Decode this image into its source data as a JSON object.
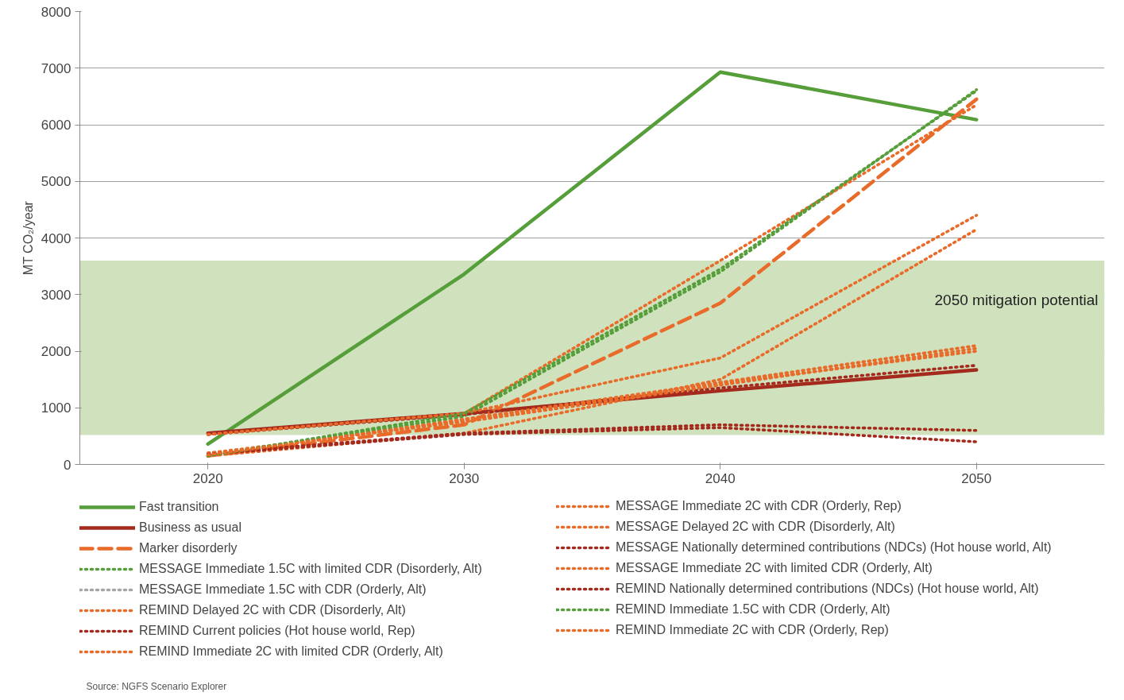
{
  "chart_data": {
    "type": "line",
    "ylabel": "MT CO₂/year",
    "x": [
      2020,
      2030,
      2040,
      2050
    ],
    "xlim": [
      2015,
      2055
    ],
    "xticks": [
      2020,
      2030,
      2040,
      2050
    ],
    "ylim": [
      0,
      8000
    ],
    "yticks": [
      0,
      1000,
      2000,
      3000,
      4000,
      5000,
      6000,
      7000,
      8000
    ],
    "grid": "y",
    "legend": "bottom",
    "bands": [
      {
        "axis": "y",
        "from": 520,
        "to": 3600,
        "label": "2050 mitigation potential",
        "color": "#cfe2bd"
      }
    ],
    "annotations": [
      "Source: NGFS Scenario Explorer"
    ],
    "series": [
      {
        "name": "Fast transition",
        "color": "#559e3a",
        "line_style": "solid",
        "values": [
          360,
          3360,
          6930,
          6090
        ]
      },
      {
        "name": "Business as usual",
        "color": "#a52a1e",
        "line_style": "solid",
        "values": [
          550,
          900,
          1300,
          1670
        ]
      },
      {
        "name": "Marker disorderly",
        "color": "#e96b2a",
        "line_style": "dashed",
        "values": [
          150,
          700,
          2850,
          6450
        ]
      },
      {
        "name": "MESSAGE Immediate 1.5C with limited CDR (Disorderly, Alt)",
        "color": "#559e3a",
        "line_style": "dotted",
        "values": [
          150,
          850,
          3400,
          6620
        ]
      },
      {
        "name": "MESSAGE Immediate 1.5C with CDR (Orderly, Alt)",
        "color": "#a6a6a6",
        "line_style": "dotted",
        "values": [
          null,
          null,
          null,
          null
        ]
      },
      {
        "name": "REMIND Delayed 2C with CDR (Disorderly, Alt)",
        "color": "#e96b2a",
        "line_style": "dotted",
        "values": [
          530,
          900,
          1880,
          4400
        ]
      },
      {
        "name": "REMIND Current policies (Hot house world, Rep)",
        "color": "#a52a1e",
        "line_style": "dotted",
        "values": [
          530,
          880,
          1350,
          1750
        ]
      },
      {
        "name": "REMIND Immediate 2C with limited CDR (Orderly, Alt)",
        "color": "#e96b2a",
        "line_style": "dotted",
        "values": [
          150,
          800,
          1450,
          2100
        ]
      },
      {
        "name": "MESSAGE Immediate 2C with CDR (Orderly, Rep)",
        "color": "#e96b2a",
        "line_style": "dotted",
        "values": [
          150,
          550,
          1500,
          4150
        ]
      },
      {
        "name": "MESSAGE Delayed 2C with CDR (Disorderly, Alt)",
        "color": "#e96b2a",
        "line_style": "dotted",
        "values": [
          530,
          900,
          3600,
          6350
        ]
      },
      {
        "name": "MESSAGE Nationally determined contributions (NDCs) (Hot house world, Alt)",
        "color": "#a52a1e",
        "line_style": "dotted",
        "values": [
          200,
          550,
          700,
          600
        ]
      },
      {
        "name": "MESSAGE Immediate 2C with limited CDR (Orderly, Alt)",
        "color": "#e96b2a",
        "line_style": "dotted",
        "values": [
          200,
          750,
          1400,
          2050
        ]
      },
      {
        "name": "REMIND Nationally determined contributions (NDCs) (Hot house world, Alt)",
        "color": "#a52a1e",
        "line_style": "dotted",
        "values": [
          180,
          530,
          650,
          400
        ]
      },
      {
        "name": "REMIND Immediate 1.5C with CDR (Orderly, Alt)",
        "color": "#559e3a",
        "line_style": "dotted",
        "values": [
          150,
          900,
          3450,
          6600
        ]
      },
      {
        "name": "REMIND Immediate 2C with CDR (Orderly, Rep)",
        "color": "#e96b2a",
        "line_style": "dotted",
        "values": [
          170,
          780,
          1430,
          2000
        ]
      }
    ]
  }
}
